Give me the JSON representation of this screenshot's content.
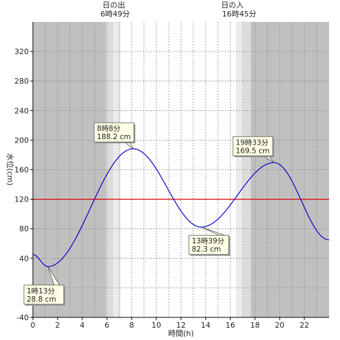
{
  "chart_data": {
    "type": "line",
    "xlabel": "時間(h)",
    "ylabel": "水位(cm)",
    "xlim": [
      0,
      24
    ],
    "ylim": [
      -40,
      360
    ],
    "x_ticks": [
      0,
      2,
      4,
      6,
      8,
      10,
      12,
      14,
      16,
      18,
      20,
      22
    ],
    "y_ticks": [
      -40,
      0,
      40,
      80,
      120,
      160,
      200,
      240,
      280,
      320
    ],
    "reference_line": {
      "y": 120,
      "color": "#e00000"
    },
    "line_color": "#0000cc",
    "sunrise": {
      "label": "日の出",
      "time_text": "6時49分",
      "hour": 6.817
    },
    "sunset": {
      "label": "日の入",
      "time_text": "16時45分",
      "hour": 16.75
    },
    "twilight_shading": {
      "night": "#c0c0c0",
      "twilight": "#dcdcdc",
      "day": "#ffffff"
    },
    "series": [
      {
        "x": [
          0,
          1.22,
          8.13,
          13.65,
          19.55,
          24
        ],
        "y": [
          45,
          28.8,
          188.2,
          82.3,
          169.5,
          65
        ]
      }
    ],
    "annotations": [
      {
        "time": "1時13分",
        "value": "28.8 cm",
        "x": 1.22,
        "y": 28.8
      },
      {
        "time": "8時8分",
        "value": "188.2 cm",
        "x": 8.13,
        "y": 188.2
      },
      {
        "time": "13時39分",
        "value": "82.3 cm",
        "x": 13.65,
        "y": 82.3
      },
      {
        "time": "19時33分",
        "value": "169.5 cm",
        "x": 19.55,
        "y": 169.5
      }
    ]
  }
}
